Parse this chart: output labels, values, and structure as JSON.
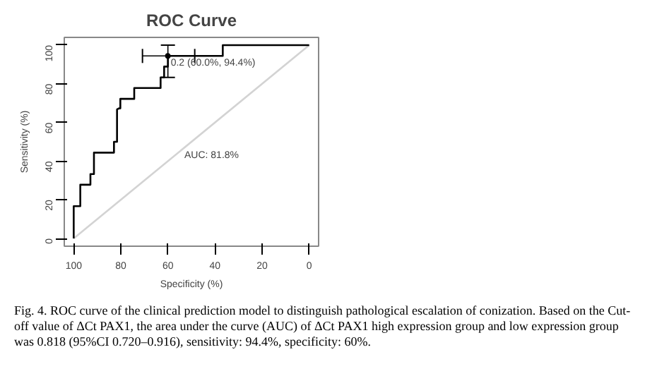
{
  "chart_data": {
    "type": "line",
    "title": "ROC Curve",
    "xlabel": "Specificity (%)",
    "ylabel": "Sensitivity (%)",
    "xlim": [
      104,
      -4
    ],
    "ylim": [
      -4,
      104
    ],
    "xticks": [
      100,
      80,
      60,
      40,
      20,
      0
    ],
    "yticks": [
      0,
      20,
      40,
      60,
      80,
      100
    ],
    "grid": false,
    "series": [
      {
        "color": "#d3d3d3",
        "x": [
          100,
          0
        ],
        "values": [
          0,
          100
        ]
      },
      {
        "color": "#000000",
        "x": [
          100,
          100,
          97.2,
          97.2,
          92.9,
          92.9,
          91.4,
          91.4,
          82.9,
          82.9,
          81.6,
          81.6,
          80.8,
          80.2,
          80.2,
          74.3,
          74.3,
          63.1,
          63.1,
          61.6,
          61.6,
          60,
          60,
          36.7,
          36.7,
          0
        ],
        "values": [
          0,
          16.7,
          16.7,
          27.8,
          27.8,
          33.3,
          33.3,
          44.4,
          44.4,
          50,
          50,
          66.7,
          67.3,
          67.3,
          72.2,
          72.2,
          77.8,
          77.8,
          83.3,
          83.3,
          88.9,
          88.9,
          94.4,
          94.4,
          100,
          100
        ]
      },
      {
        "type": "scatter",
        "color": "#000000",
        "marker": "circle",
        "x": [
          60
        ],
        "values": [
          94.4
        ],
        "errors": [
          [
            83.3,
            100
          ]
        ],
        "xerrors": [
          [
            48.6,
            70.8
          ]
        ]
      }
    ],
    "annotations": [
      {
        "text": "0.2 (60.0%, 94.4%)",
        "x": 60,
        "y": 94.4
      },
      "AUC: 81.8%",
      "Fig. 4. ROC curve of the clinical prediction model to distinguish pathological escalation of conization. Based on the Cut-off value of ΔCt PAX1, the area under the curve (AUC) of ΔCt PAX1 high expression group and low expression group was 0.818 (95%CI 0.720–0.916), sensitivity: 94.4%, specificity: 60%."
    ]
  }
}
